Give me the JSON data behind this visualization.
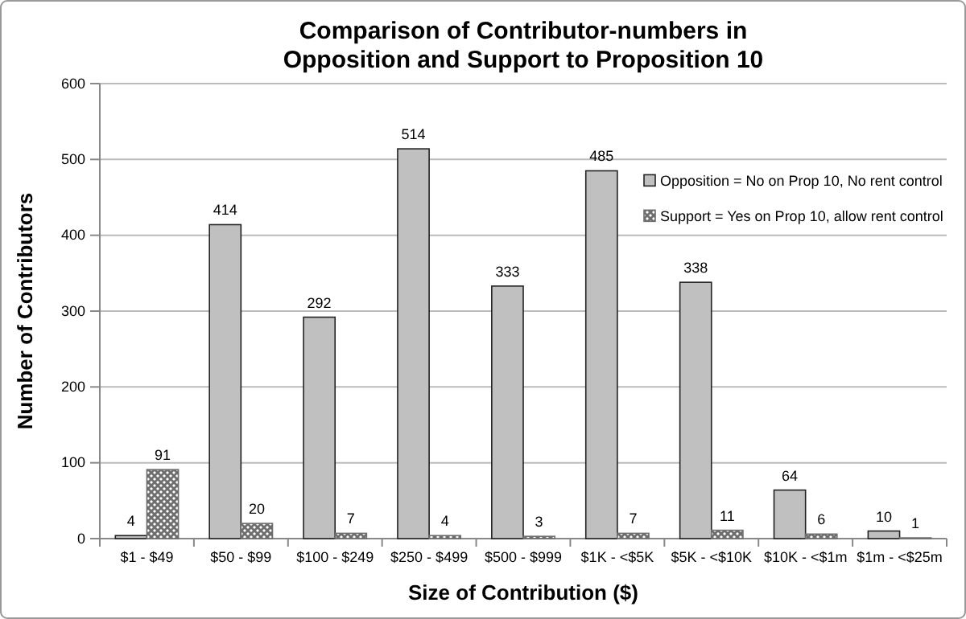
{
  "chart_data": {
    "type": "bar",
    "title": "Comparison of Contributor-numbers in Opposition and Support to Proposition 10",
    "xlabel": "Size of Contribution ($)",
    "ylabel": "Number of Contributors",
    "categories": [
      "$1 - $49",
      "$50 - $99",
      "$100 - $249",
      "$250 - $499",
      "$500 - $999",
      "$1K - <$5K",
      "$5K - <$10K",
      "$10K - <$1m",
      "$1m - <$25m"
    ],
    "series": [
      {
        "name": "Opposition = No on Prop 10, No rent control",
        "color": "#c0c0c0",
        "values": [
          4,
          414,
          292,
          514,
          333,
          485,
          338,
          64,
          10
        ]
      },
      {
        "name": "Support = Yes on Prop 10, allow rent control",
        "color": "#6e6e6e",
        "values": [
          91,
          20,
          7,
          4,
          3,
          7,
          11,
          6,
          1
        ]
      }
    ],
    "ylim": [
      0,
      600
    ],
    "yticks": [
      0,
      100,
      200,
      300,
      400,
      500,
      600
    ],
    "grid": "y",
    "legend": "top right",
    "data_labels": true
  }
}
